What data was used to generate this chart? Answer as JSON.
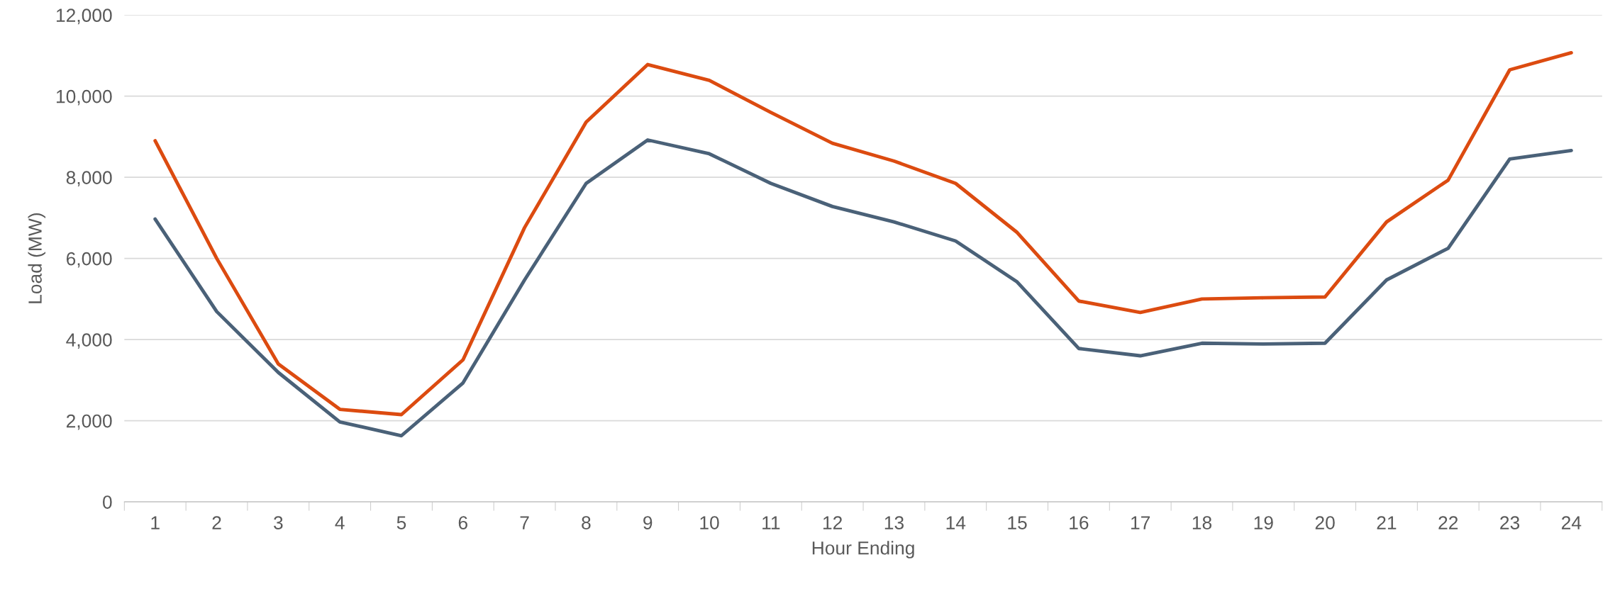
{
  "chart_data": {
    "type": "line",
    "xlabel": "Hour Ending",
    "ylabel": "Load (MW)",
    "categories": [
      "1",
      "2",
      "3",
      "4",
      "5",
      "6",
      "7",
      "8",
      "9",
      "10",
      "11",
      "12",
      "13",
      "14",
      "15",
      "16",
      "17",
      "18",
      "19",
      "20",
      "21",
      "22",
      "23",
      "24"
    ],
    "series": [
      {
        "color": "#dc4b10",
        "values": [
          8900,
          6000,
          3400,
          2280,
          2150,
          3500,
          6760,
          9360,
          10780,
          10390,
          9600,
          8840,
          8400,
          7850,
          6640,
          4950,
          4670,
          5000,
          5030,
          5050,
          6900,
          7930,
          10650,
          11070
        ]
      },
      {
        "color": "#4a6178",
        "values": [
          6970,
          4690,
          3190,
          1970,
          1630,
          2930,
          5470,
          7850,
          8920,
          8580,
          7850,
          7280,
          6900,
          6430,
          5420,
          3780,
          3600,
          3910,
          3890,
          3910,
          5470,
          6250,
          8450,
          8660
        ]
      }
    ],
    "ylim": [
      0,
      12000
    ],
    "yticks": [
      {
        "value": 0,
        "label": "0"
      },
      {
        "value": 2000,
        "label": "2,000"
      },
      {
        "value": 4000,
        "label": "4,000"
      },
      {
        "value": 6000,
        "label": "6,000"
      },
      {
        "value": 8000,
        "label": "8,000"
      },
      {
        "value": 10000,
        "label": "10,000"
      },
      {
        "value": 12000,
        "label": "12,000"
      }
    ],
    "grid": "y",
    "marker": "none",
    "line_style": "solid"
  }
}
